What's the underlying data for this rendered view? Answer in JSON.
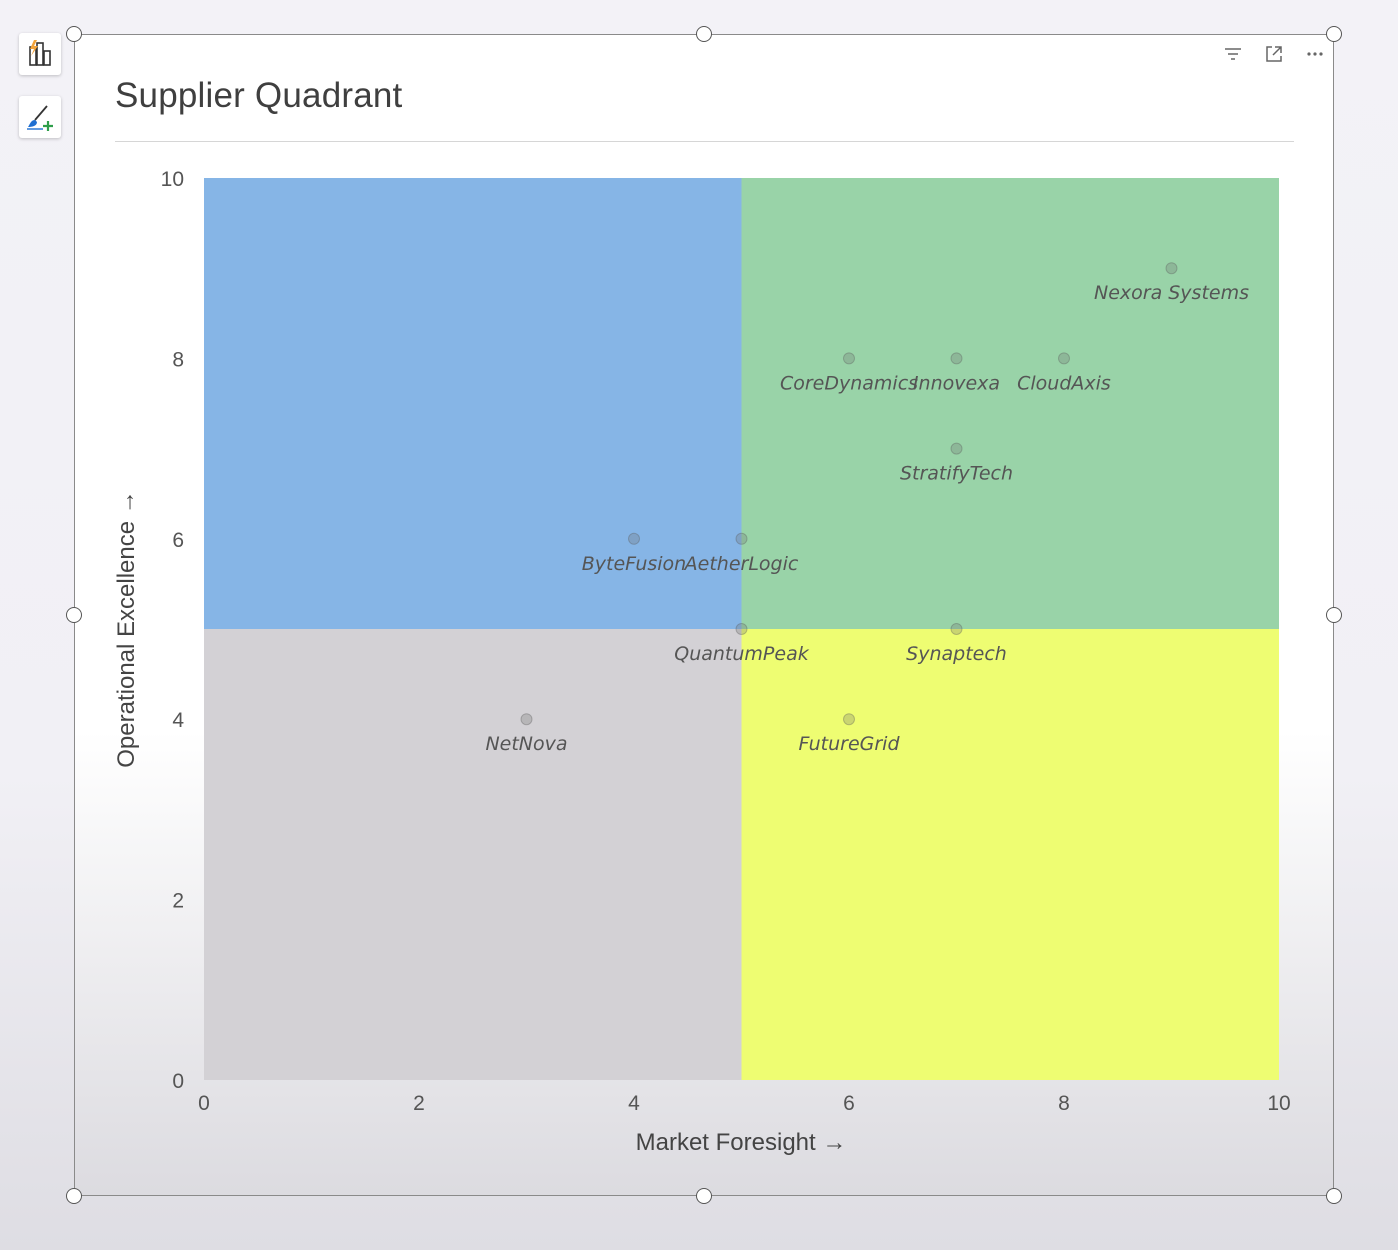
{
  "chart_data": {
    "type": "scatter",
    "title": "Supplier Quadrant",
    "xlabel": "Market Foresight →",
    "ylabel": "Operational Excellence →",
    "xlim": [
      0,
      10
    ],
    "ylim": [
      0,
      10
    ],
    "xticks": [
      "0",
      "2",
      "4",
      "6",
      "8",
      "10"
    ],
    "yticks": [
      "0",
      "2",
      "4",
      "6",
      "8",
      "10"
    ],
    "grid": false,
    "legend": "none",
    "quadrant_split": {
      "x": 5,
      "y": 5
    },
    "quadrants": [
      {
        "x": [
          0,
          5
        ],
        "y": [
          5,
          10
        ],
        "color": "#86b5e6"
      },
      {
        "x": [
          5,
          10
        ],
        "y": [
          5,
          10
        ],
        "color": "#99d3a8"
      },
      {
        "x": [
          0,
          5
        ],
        "y": [
          0,
          5
        ],
        "color": "#d3d1d5"
      },
      {
        "x": [
          5,
          10
        ],
        "y": [
          0,
          5
        ],
        "color": "#eefd72"
      }
    ],
    "points": [
      {
        "label": "Nexora Systems",
        "x": 9,
        "y": 9
      },
      {
        "label": "CoreDynamics",
        "x": 6,
        "y": 8
      },
      {
        "label": "Innovexa",
        "x": 7,
        "y": 8
      },
      {
        "label": "CloudAxis",
        "x": 8,
        "y": 8
      },
      {
        "label": "StratifyTech",
        "x": 7,
        "y": 7
      },
      {
        "label": "ByteFusion",
        "x": 4,
        "y": 6
      },
      {
        "label": "AetherLogic",
        "x": 5,
        "y": 6
      },
      {
        "label": "QuantumPeak",
        "x": 5,
        "y": 5
      },
      {
        "label": "Synaptech",
        "x": 7,
        "y": 5
      },
      {
        "label": "NetNova",
        "x": 3,
        "y": 4
      },
      {
        "label": "FutureGrid",
        "x": 6,
        "y": 4
      }
    ]
  },
  "icons": {
    "side_tools": [
      "bar-chart-lightning-icon",
      "format-brush-icon"
    ],
    "header": [
      "filter-icon",
      "focus-mode-icon",
      "more-options-icon"
    ]
  }
}
